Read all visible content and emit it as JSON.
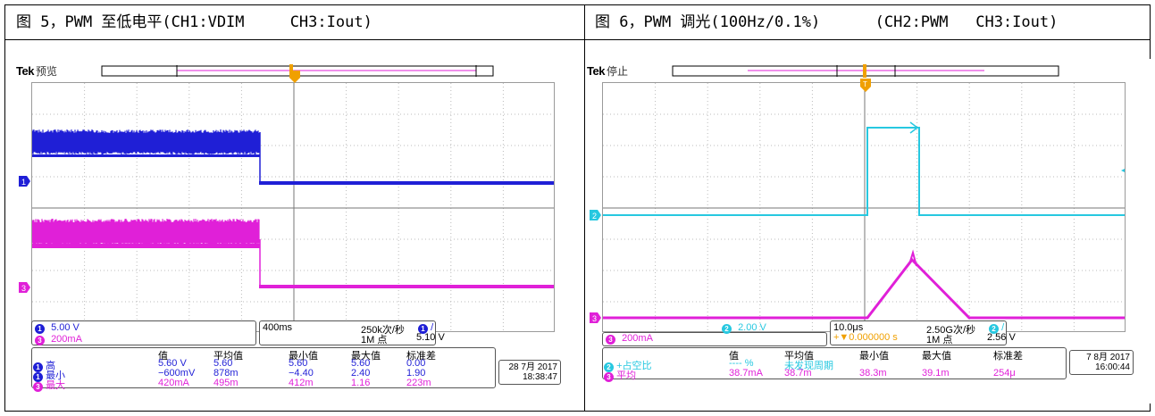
{
  "figure1": {
    "caption": "图 5，PWM 至低电平(CH1:VDIM     CH3:Iout)",
    "brand": "Tek",
    "mode": "预览",
    "ch1_scale": "5.00 V",
    "ch3_scale": "200mA",
    "timebase": "400ms",
    "sample_rate": "250k次/秒",
    "record_length": "1M 点",
    "trigger_level": "5.10 V",
    "headers": [
      "值",
      "平均值",
      "最小值",
      "最大值",
      "标准差"
    ],
    "rows": [
      {
        "ch": "1",
        "label": "高",
        "value": "5.60 V",
        "mean": "5.60",
        "min": "5.60",
        "max": "5.60",
        "std": "0.00"
      },
      {
        "ch": "1",
        "label": "最小",
        "value": "−600mV",
        "mean": "878m",
        "min": "−4.40",
        "max": "2.40",
        "std": "1.90"
      },
      {
        "ch": "3",
        "label": "最大",
        "value": "420mA",
        "mean": "495m",
        "min": "412m",
        "max": "1.16",
        "std": "223m"
      }
    ],
    "date": "28 7月 2017",
    "time": "18:38:47"
  },
  "figure2": {
    "caption": "图 6，PWM 调光(100Hz/0.1%)      (CH2:PWM   CH3:Iout)",
    "brand": "Tek",
    "mode": "停止",
    "ch3_scale": "200mA",
    "ch2_scale": "2.00 V",
    "timebase": "10.0μs",
    "trigger_pos": "+▼0.000000 s",
    "sample_rate": "2.50G次/秒",
    "record_length": "1M 点",
    "trigger_level": "2.56 V",
    "headers": [
      "值",
      "平均值",
      "最小值",
      "最大值",
      "标准差"
    ],
    "rows": [
      {
        "ch": "2",
        "label": "+占空比",
        "value": "---- %",
        "mean": "未发现周期",
        "min": "",
        "max": "",
        "std": ""
      },
      {
        "ch": "3",
        "label": "平均",
        "value": "38.7mA",
        "mean": "38.7m",
        "min": "38.3m",
        "max": "39.1m",
        "std": "254μ"
      }
    ],
    "date": "7 8月 2017",
    "time": "16:00:44"
  },
  "colors": {
    "ch1": "#1f1fd6",
    "ch2": "#27c8e0",
    "ch3": "#e020d8",
    "trigger": "#f0a000"
  }
}
